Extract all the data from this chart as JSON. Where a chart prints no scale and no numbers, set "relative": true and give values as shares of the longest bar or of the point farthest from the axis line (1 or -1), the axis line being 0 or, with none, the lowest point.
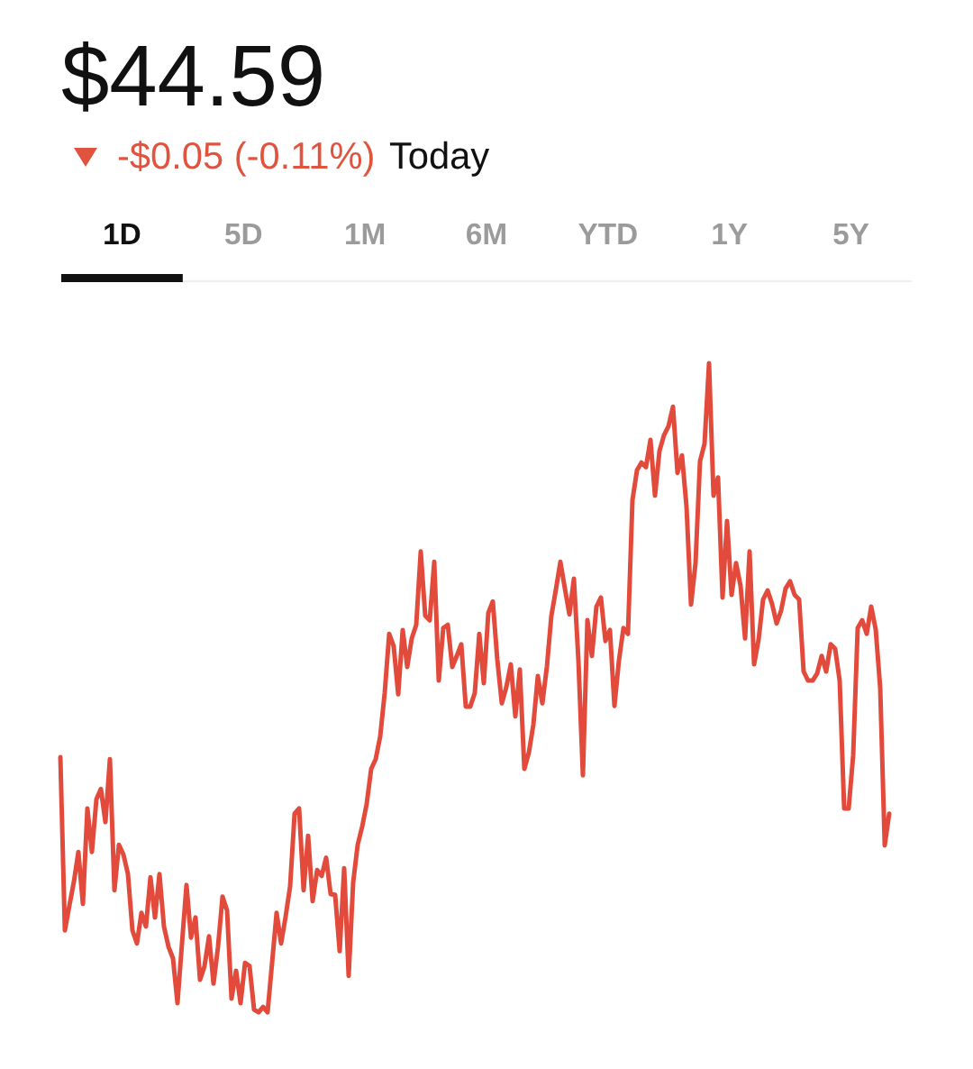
{
  "chart_data": {
    "type": "line",
    "title": "$44.59",
    "subtitle": "-$0.05 (-0.11%)",
    "annotations": [
      "Today",
      "1D",
      "5D",
      "1M",
      "6M",
      "YTD",
      "1Y",
      "5Y"
    ],
    "relative": true,
    "line_style": "solid",
    "categories": [
      null,
      null,
      null,
      null,
      null,
      null,
      null,
      null,
      null,
      null,
      null,
      null,
      null,
      null,
      null,
      null,
      null,
      null,
      null,
      null,
      null,
      null,
      null,
      null,
      null,
      null,
      null,
      null,
      null,
      null,
      null,
      null,
      null,
      null,
      null,
      null,
      null,
      null,
      null,
      null,
      null,
      null,
      null,
      null,
      null,
      null,
      null,
      null,
      null,
      null,
      null,
      null,
      null,
      null,
      null,
      null,
      null,
      null,
      null,
      null,
      null,
      null,
      null,
      null,
      null,
      null,
      null,
      null,
      null,
      null,
      null,
      null,
      null,
      null,
      null,
      null,
      null,
      null,
      null,
      null,
      null,
      null,
      null,
      null,
      null,
      null,
      null,
      null,
      null,
      null,
      null,
      null,
      null,
      null,
      null,
      null,
      null,
      null,
      null,
      null,
      null,
      null,
      null,
      null,
      null,
      null,
      null,
      null,
      null,
      null,
      null,
      null,
      null,
      null,
      null,
      null,
      null,
      null,
      null,
      null,
      null,
      null,
      null,
      null,
      null,
      null,
      null,
      null,
      null,
      null,
      null,
      null,
      null,
      null,
      null,
      null,
      null,
      null,
      null,
      null,
      null,
      null,
      null,
      null,
      null,
      null,
      null,
      null,
      null,
      null,
      null,
      null,
      null,
      null,
      null,
      null,
      null,
      null,
      null,
      null,
      null,
      null,
      null,
      null,
      null,
      null,
      null,
      null,
      null,
      null,
      null,
      null,
      null,
      null,
      null,
      null,
      null,
      null,
      null,
      null,
      null,
      null,
      null,
      null,
      null
    ],
    "series": [
      {
        "color": "#e24b3c",
        "values": [
          0.393,
          0.126,
          0.164,
          0.201,
          0.247,
          0.167,
          0.314,
          0.247,
          0.328,
          0.344,
          0.293,
          0.39,
          0.188,
          0.258,
          0.243,
          0.213,
          0.126,
          0.106,
          0.153,
          0.132,
          0.208,
          0.146,
          0.213,
          0.132,
          0.101,
          0.083,
          0.014,
          0.106,
          0.196,
          0.115,
          0.146,
          0.05,
          0.071,
          0.117,
          0.044,
          0.101,
          0.178,
          0.157,
          0.021,
          0.064,
          0.014,
          0.076,
          0.071,
          0.004,
          0,
          0.008,
          0,
          0.076,
          0.153,
          0.106,
          0.147,
          0.194,
          0.306,
          0.314,
          0.188,
          0.272,
          0.171,
          0.219,
          0.21,
          0.238,
          0.182,
          0.181,
          0.094,
          0.222,
          0.056,
          0.2,
          0.258,
          0.286,
          0.321,
          0.375,
          0.39,
          0.425,
          0.492,
          0.583,
          0.564,
          0.49,
          0.589,
          0.532,
          0.576,
          0.597,
          0.71,
          0.611,
          0.604,
          0.694,
          0.511,
          0.592,
          0.597,
          0.532,
          0.549,
          0.567,
          0.471,
          0.471,
          0.492,
          0.583,
          0.507,
          0.615,
          0.633,
          0.543,
          0.476,
          0.501,
          0.536,
          0.456,
          0.528,
          0.375,
          0.4,
          0.443,
          0.518,
          0.476,
          0.532,
          0.611,
          0.651,
          0.694,
          0.653,
          0.613,
          0.668,
          0.543,
          0.365,
          0.604,
          0.549,
          0.625,
          0.639,
          0.572,
          0.589,
          0.472,
          0.542,
          0.592,
          0.583,
          0.789,
          0.835,
          0.847,
          0.84,
          0.882,
          0.796,
          0.865,
          0.889,
          0.903,
          0.933,
          0.831,
          0.858,
          0.779,
          0.628,
          0.692,
          0.849,
          0.876,
          1,
          0.796,
          0.824,
          0.639,
          0.757,
          0.643,
          0.692,
          0.657,
          0.576,
          0.71,
          0.536,
          0.574,
          0.636,
          0.65,
          0.629,
          0.599,
          0.619,
          0.653,
          0.664,
          0.643,
          0.636,
          0.525,
          0.511,
          0.511,
          0.522,
          0.549,
          0.525,
          0.567,
          0.56,
          0.511,
          0.314,
          0.314,
          0.396,
          0.592,
          0.604,
          0.583,
          0.625,
          0.59,
          0.5,
          0.257,
          0.306
        ]
      }
    ]
  }
}
